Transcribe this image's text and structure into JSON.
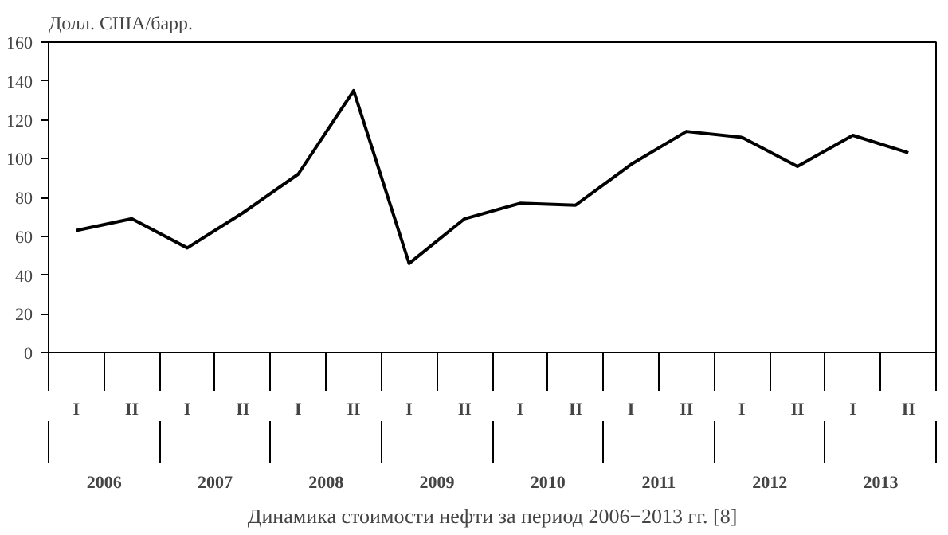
{
  "chart_data": {
    "type": "line",
    "title": "Динамика стоимости нефти за период 2006−2013 гг. [8]",
    "ylabel": "Долл. США/барр.",
    "categories": [
      "I",
      "II",
      "I",
      "II",
      "I",
      "II",
      "I",
      "II",
      "I",
      "II",
      "I",
      "II",
      "I",
      "II",
      "I",
      "II"
    ],
    "annotations": [
      "2006",
      "2007",
      "2008",
      "2009",
      "2010",
      "2011",
      "2012",
      "2013"
    ],
    "series": [
      {
        "color": "#000000",
        "values": [
          63,
          69,
          54,
          72,
          92,
          135,
          46,
          69,
          77,
          76,
          97,
          114,
          111,
          96,
          112,
          103
        ]
      }
    ],
    "ylim": [
      0,
      160
    ],
    "yticks": [
      0,
      20,
      40,
      60,
      80,
      100,
      120,
      140,
      160
    ],
    "grid": false,
    "marker": "none",
    "line_style": "solid"
  }
}
